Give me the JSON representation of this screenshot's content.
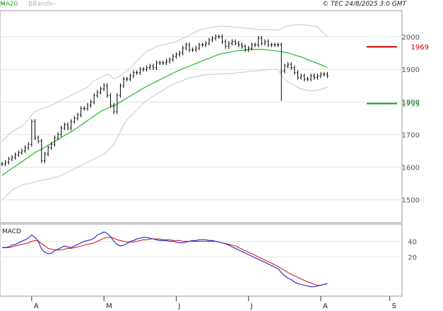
{
  "header": {
    "legend_ma": "MA20",
    "legend_bands": "BBands",
    "copyright": "© TEC 24/8/2025 3:0 GMT"
  },
  "colors": {
    "background": "#ffffff",
    "grid": "#e4e4e4",
    "frame": "#9a9a9a",
    "price_bars": "#000000",
    "ma20": "#22bb22",
    "bbands": "#c8c8c8",
    "macd_line": "#2222cc",
    "signal_line": "#cc2222",
    "resistance": "#cc0000",
    "support": "#119911"
  },
  "levels": {
    "resistance": {
      "value": 1969,
      "label": "1969"
    },
    "support": {
      "value": 1795,
      "label": "1795"
    }
  },
  "chart_data": [
    {
      "type": "line",
      "title": "",
      "chart_kind": "OHLC price bars with 20-period moving average and Bollinger Bands",
      "y_ticks": [
        1500,
        1600,
        1700,
        1800,
        1900,
        2000
      ],
      "y_tick_labels": [
        "1500",
        "1600",
        "1700",
        "1800",
        "1900",
        "2000"
      ],
      "ylim": [
        1430,
        2080
      ],
      "x_month_labels": [
        "A",
        "M",
        "J",
        "J",
        "A",
        "S"
      ],
      "x_month_slots": [
        9,
        31,
        53,
        75,
        97,
        118
      ],
      "grid": true,
      "series": [
        {
          "name": "Price",
          "slots_start": 0,
          "closes": [
            1610,
            1615,
            1625,
            1630,
            1638,
            1645,
            1650,
            1660,
            1670,
            1740,
            1690,
            1680,
            1620,
            1640,
            1660,
            1670,
            1690,
            1700,
            1720,
            1730,
            1720,
            1740,
            1750,
            1760,
            1780,
            1780,
            1790,
            1800,
            1820,
            1830,
            1840,
            1850,
            1820,
            1790,
            1770,
            1820,
            1850,
            1870,
            1870,
            1880,
            1890,
            1890,
            1900,
            1900,
            1905,
            1910,
            1905,
            1920,
            1920,
            1920,
            1925,
            1930,
            1940,
            1945,
            1950,
            1965,
            1975,
            1960,
            1960,
            1965,
            1975,
            1975,
            1980,
            1990,
            1995,
            2000,
            2000,
            1985,
            1970,
            1980,
            1985,
            1980,
            1975,
            1970,
            1960,
            1965,
            1975,
            1975,
            1995,
            1980,
            1985,
            1975,
            1975,
            1975,
            1975,
            1895,
            1910,
            1915,
            1905,
            1890,
            1875,
            1880,
            1870,
            1870,
            1880,
            1875,
            1880,
            1885,
            1885,
            1880
          ]
        },
        {
          "name": "MA20",
          "slots_start": 0,
          "values": [
            1575,
            1582,
            1589,
            1596,
            1603,
            1610,
            1617,
            1624,
            1631,
            1638,
            1645,
            1650,
            1655,
            1661,
            1667,
            1673,
            1679,
            1685,
            1691,
            1697,
            1703,
            1709,
            1715,
            1722,
            1729,
            1736,
            1743,
            1750,
            1757,
            1764,
            1771,
            1776,
            1780,
            1784,
            1788,
            1794,
            1800,
            1806,
            1812,
            1818,
            1824,
            1830,
            1836,
            1842,
            1848,
            1853,
            1858,
            1863,
            1868,
            1873,
            1878,
            1883,
            1888,
            1893,
            1898,
            1902,
            1906,
            1910,
            1914,
            1918,
            1922,
            1926,
            1930,
            1934,
            1938,
            1942,
            1946,
            1948,
            1950,
            1952,
            1954,
            1956,
            1957,
            1958,
            1959,
            1960,
            1961,
            1961,
            1961,
            1961,
            1960,
            1959,
            1958,
            1957,
            1956,
            1954,
            1952,
            1950,
            1947,
            1944,
            1941,
            1938,
            1934,
            1930,
            1926,
            1922,
            1918,
            1914,
            1910,
            1906
          ]
        },
        {
          "name": "BBands upper",
          "slots_start": 0,
          "values": [
            1680,
            1690,
            1700,
            1710,
            1715,
            1720,
            1725,
            1735,
            1745,
            1760,
            1770,
            1775,
            1780,
            1782,
            1785,
            1790,
            1795,
            1800,
            1805,
            1810,
            1815,
            1820,
            1825,
            1830,
            1835,
            1840,
            1845,
            1855,
            1865,
            1870,
            1875,
            1880,
            1885,
            1880,
            1870,
            1875,
            1880,
            1890,
            1895,
            1905,
            1915,
            1925,
            1935,
            1945,
            1955,
            1960,
            1965,
            1970,
            1972,
            1975,
            1978,
            1980,
            1982,
            1985,
            1990,
            1995,
            2000,
            2005,
            2010,
            2015,
            2020,
            2023,
            2025,
            2027,
            2029,
            2030,
            2031,
            2032,
            2032,
            2031,
            2030,
            2029,
            2028,
            2027,
            2026,
            2025,
            2024,
            2023,
            2022,
            2022,
            2022,
            2022,
            2021,
            2021,
            2020,
            2025,
            2030,
            2033,
            2035,
            2036,
            2037,
            2037,
            2036,
            2035,
            2034,
            2033,
            2030,
            2020,
            2010,
            2000
          ]
        },
        {
          "name": "BBands lower",
          "slots_start": 0,
          "values": [
            1500,
            1510,
            1520,
            1530,
            1535,
            1540,
            1545,
            1548,
            1550,
            1552,
            1555,
            1558,
            1560,
            1562,
            1564,
            1566,
            1568,
            1570,
            1575,
            1580,
            1585,
            1590,
            1595,
            1600,
            1605,
            1610,
            1615,
            1620,
            1625,
            1630,
            1635,
            1640,
            1650,
            1660,
            1670,
            1690,
            1710,
            1730,
            1745,
            1755,
            1765,
            1775,
            1785,
            1795,
            1805,
            1812,
            1818,
            1824,
            1830,
            1836,
            1842,
            1848,
            1854,
            1858,
            1862,
            1866,
            1870,
            1874,
            1876,
            1878,
            1880,
            1882,
            1883,
            1884,
            1885,
            1885,
            1886,
            1886,
            1887,
            1887,
            1888,
            1889,
            1890,
            1891,
            1892,
            1893,
            1894,
            1895,
            1896,
            1897,
            1898,
            1899,
            1900,
            1900,
            1899,
            1880,
            1870,
            1862,
            1856,
            1850,
            1845,
            1840,
            1838,
            1836,
            1835,
            1834,
            1836,
            1838,
            1842,
            1846
          ]
        }
      ]
    },
    {
      "type": "line",
      "title": "MACD",
      "y_tick_labels": [
        "20",
        "40"
      ],
      "y_ticks": [
        20,
        40
      ],
      "ylim": [
        -30,
        62
      ],
      "grid": true,
      "series": [
        {
          "name": "MACD",
          "slots_start": 0,
          "values": [
            32,
            32,
            33,
            35,
            36,
            38,
            40,
            42,
            44,
            48,
            45,
            40,
            30,
            26,
            24,
            25,
            28,
            30,
            32,
            34,
            33,
            32,
            34,
            36,
            38,
            40,
            41,
            42,
            44,
            48,
            50,
            52,
            50,
            46,
            40,
            36,
            34,
            35,
            37,
            40,
            41,
            43,
            44,
            45,
            45,
            44,
            43,
            42,
            41,
            41,
            41,
            40,
            40,
            39,
            38,
            38,
            39,
            40,
            41,
            41,
            42,
            42,
            42,
            41,
            41,
            40,
            39,
            38,
            37,
            35,
            33,
            31,
            29,
            27,
            25,
            23,
            21,
            19,
            17,
            15,
            13,
            11,
            9,
            7,
            5,
            0,
            -4,
            -7,
            -9,
            -12,
            -14,
            -15,
            -16,
            -17,
            -18,
            -18,
            -17,
            -16,
            -15,
            -14
          ]
        },
        {
          "name": "Signal",
          "slots_start": 0,
          "values": [
            32,
            32,
            32,
            33,
            34,
            35,
            36,
            37,
            38,
            40,
            41,
            40,
            37,
            34,
            31,
            30,
            29,
            29,
            29,
            30,
            31,
            31,
            32,
            33,
            34,
            35,
            36,
            37,
            38,
            40,
            42,
            44,
            45,
            45,
            44,
            42,
            41,
            40,
            39,
            39,
            39,
            40,
            41,
            42,
            42,
            43,
            43,
            43,
            43,
            42,
            42,
            42,
            41,
            41,
            41,
            40,
            40,
            40,
            40,
            40,
            40,
            40,
            40,
            40,
            40,
            40,
            39,
            38,
            37,
            36,
            35,
            34,
            32,
            30,
            28,
            26,
            24,
            22,
            20,
            18,
            16,
            14,
            12,
            10,
            8,
            5,
            3,
            0,
            -2,
            -4,
            -6,
            -8,
            -10,
            -12,
            -13,
            -15,
            -16,
            -16,
            -15,
            -14
          ]
        }
      ]
    }
  ]
}
